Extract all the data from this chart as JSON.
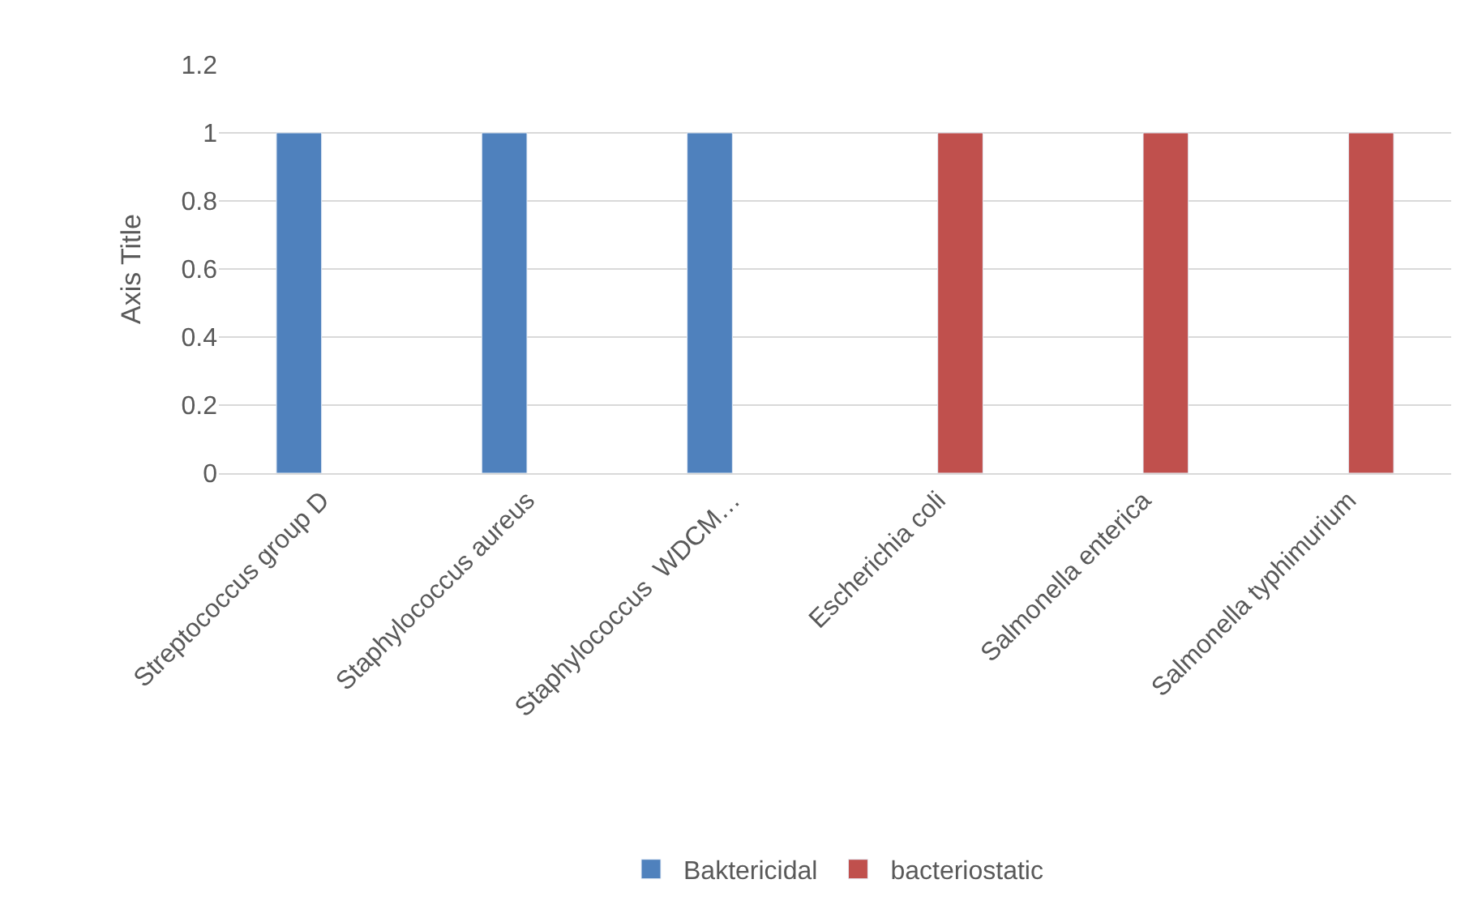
{
  "chart_data": {
    "type": "bar",
    "ylabel": "Axis Title",
    "categories": [
      "Streptococcus group D",
      "Staphylococcus aureus",
      "Staphylococcus  WDCM…",
      "Escherichia coli",
      "Salmonella enterica",
      "Salmonella typhimurium"
    ],
    "series": [
      {
        "name": "Baktericidal",
        "color": "#4f81bd",
        "values": [
          1,
          1,
          1,
          null,
          null,
          null
        ]
      },
      {
        "name": "bacteriostatic",
        "color": "#c0504d",
        "values": [
          null,
          null,
          null,
          1,
          1,
          1
        ]
      }
    ],
    "ylim": [
      0,
      1.2
    ],
    "yticks": [
      0,
      0.2,
      0.4,
      0.6,
      0.8,
      1,
      1.2
    ],
    "grid": "y",
    "legend": "bottom"
  }
}
